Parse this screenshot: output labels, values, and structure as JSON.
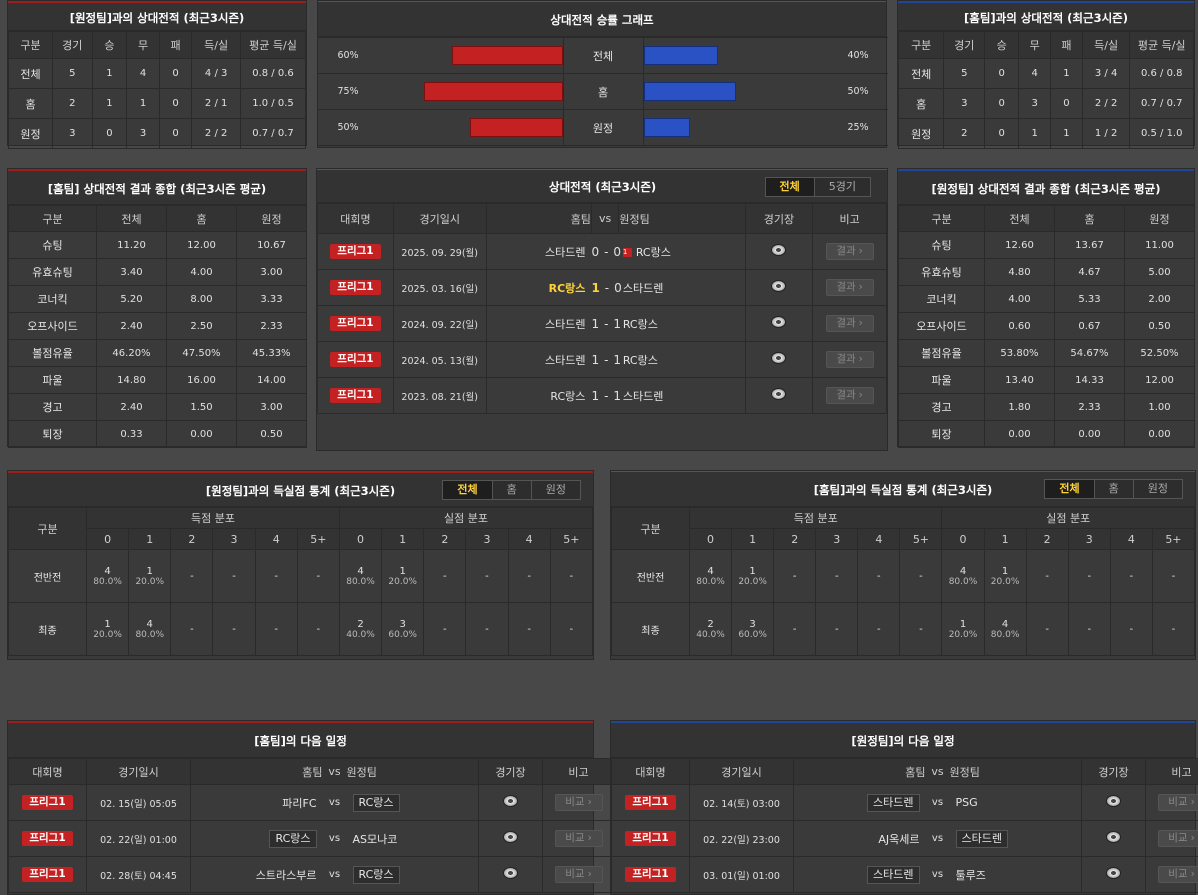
{
  "h2h_left": {
    "title": "[원정팀]과의 상대전적 (최근3시즌)",
    "headers": [
      "구분",
      "경기",
      "승",
      "무",
      "패",
      "득/실",
      "평균 득/실"
    ],
    "rows": [
      [
        "전체",
        "5",
        "1",
        "4",
        "0",
        "4 / 3",
        "0.8 / 0.6"
      ],
      [
        "홈",
        "2",
        "1",
        "1",
        "0",
        "2 / 1",
        "1.0 / 0.5"
      ],
      [
        "원정",
        "3",
        "0",
        "3",
        "0",
        "2 / 2",
        "0.7 / 0.7"
      ]
    ]
  },
  "h2h_right": {
    "title": "[홈팀]과의 상대전적 (최근3시즌)",
    "headers": [
      "구분",
      "경기",
      "승",
      "무",
      "패",
      "득/실",
      "평균 득/실"
    ],
    "rows": [
      [
        "전체",
        "5",
        "0",
        "4",
        "1",
        "3 / 4",
        "0.6 / 0.8"
      ],
      [
        "홈",
        "3",
        "0",
        "3",
        "0",
        "2 / 2",
        "0.7 / 0.7"
      ],
      [
        "원정",
        "2",
        "0",
        "1",
        "1",
        "1 / 2",
        "0.5 / 1.0"
      ]
    ]
  },
  "winrate": {
    "title": "상대전적 승률 그래프",
    "rows": [
      {
        "label": "전체",
        "home_pct": "60%",
        "home_val": 60,
        "away_pct": "40%",
        "away_val": 40
      },
      {
        "label": "홈",
        "home_pct": "75%",
        "home_val": 75,
        "away_pct": "50%",
        "away_val": 50
      },
      {
        "label": "원정",
        "home_pct": "50%",
        "home_val": 50,
        "away_pct": "25%",
        "away_val": 25
      }
    ],
    "colors": {
      "home": "#c42222",
      "away": "#2a52c4"
    }
  },
  "summary_home": {
    "title": "[홈팀] 상대전적 결과 종합 (최근3시즌 평균)",
    "headers": [
      "구분",
      "전체",
      "홈",
      "원정"
    ],
    "rows": [
      [
        "슈팅",
        "11.20",
        "12.00",
        "10.67"
      ],
      [
        "유효슈팅",
        "3.40",
        "4.00",
        "3.00"
      ],
      [
        "코너킥",
        "5.20",
        "8.00",
        "3.33"
      ],
      [
        "오프사이드",
        "2.40",
        "2.50",
        "2.33"
      ],
      [
        "볼점유율",
        "46.20%",
        "47.50%",
        "45.33%"
      ],
      [
        "파울",
        "14.80",
        "16.00",
        "14.00"
      ],
      [
        "경고",
        "2.40",
        "1.50",
        "3.00"
      ],
      [
        "퇴장",
        "0.33",
        "0.00",
        "0.50"
      ]
    ]
  },
  "summary_away": {
    "title": "[원정팀] 상대전적 결과 종합 (최근3시즌 평균)",
    "headers": [
      "구분",
      "전체",
      "홈",
      "원정"
    ],
    "rows": [
      [
        "슈팅",
        "12.60",
        "13.67",
        "11.00"
      ],
      [
        "유효슈팅",
        "4.80",
        "4.67",
        "5.00"
      ],
      [
        "코너킥",
        "4.00",
        "5.33",
        "2.00"
      ],
      [
        "오프사이드",
        "0.60",
        "0.67",
        "0.50"
      ],
      [
        "볼점유율",
        "53.80%",
        "54.67%",
        "52.50%"
      ],
      [
        "파울",
        "13.40",
        "14.33",
        "12.00"
      ],
      [
        "경고",
        "1.80",
        "2.33",
        "1.00"
      ],
      [
        "퇴장",
        "0.00",
        "0.00",
        "0.00"
      ]
    ]
  },
  "matches": {
    "title": "상대전적 (최근3시즌)",
    "tabs": [
      "전체",
      "5경기"
    ],
    "headers": [
      "대회명",
      "경기일시",
      "홈팀",
      "vs",
      "원정팀",
      "경기장",
      "비고"
    ],
    "rows": [
      {
        "league": "프리그1",
        "date": "2025. 09. 29(월)",
        "home": "스타드렌",
        "hs": "0",
        "sep": "-",
        "as": "0",
        "away": "RC랑스",
        "badge": "1",
        "btn": "결과",
        "hl": ""
      },
      {
        "league": "프리그1",
        "date": "2025. 03. 16(일)",
        "home": "RC랑스",
        "hs": "1",
        "sep": "-",
        "as": "0",
        "away": "스타드렌",
        "badge": "",
        "btn": "결과",
        "hl": "home"
      },
      {
        "league": "프리그1",
        "date": "2024. 09. 22(일)",
        "home": "스타드렌",
        "hs": "1",
        "sep": "-",
        "as": "1",
        "away": "RC랑스",
        "badge": "",
        "btn": "결과",
        "hl": ""
      },
      {
        "league": "프리그1",
        "date": "2024. 05. 13(월)",
        "home": "스타드렌",
        "hs": "1",
        "sep": "-",
        "as": "1",
        "away": "RC랑스",
        "badge": "",
        "btn": "결과",
        "hl": ""
      },
      {
        "league": "프리그1",
        "date": "2023. 08. 21(월)",
        "home": "RC랑스",
        "hs": "1",
        "sep": "-",
        "as": "1",
        "away": "스타드렌",
        "badge": "",
        "btn": "결과",
        "hl": ""
      }
    ]
  },
  "goals_left": {
    "title": "[원정팀]과의 득실점 통계 (최근3시즌)",
    "tabs": [
      "전체",
      "홈",
      "원정"
    ],
    "gubun": "구분",
    "scored": "득점 분포",
    "conceded": "실점 분포",
    "cols": [
      "0",
      "1",
      "2",
      "3",
      "4",
      "5+"
    ],
    "rows": [
      {
        "label": "전반전",
        "s": [
          [
            "4",
            "80.0%"
          ],
          [
            "1",
            "20.0%"
          ],
          [
            "-",
            ""
          ],
          [
            "-",
            ""
          ],
          [
            "-",
            ""
          ],
          [
            "-",
            ""
          ]
        ],
        "c": [
          [
            "4",
            "80.0%"
          ],
          [
            "1",
            "20.0%"
          ],
          [
            "-",
            ""
          ],
          [
            "-",
            ""
          ],
          [
            "-",
            ""
          ],
          [
            "-",
            ""
          ]
        ]
      },
      {
        "label": "최종",
        "s": [
          [
            "1",
            "20.0%"
          ],
          [
            "4",
            "80.0%"
          ],
          [
            "-",
            ""
          ],
          [
            "-",
            ""
          ],
          [
            "-",
            ""
          ],
          [
            "-",
            ""
          ]
        ],
        "c": [
          [
            "2",
            "40.0%"
          ],
          [
            "3",
            "60.0%"
          ],
          [
            "-",
            ""
          ],
          [
            "-",
            ""
          ],
          [
            "-",
            ""
          ],
          [
            "-",
            ""
          ]
        ]
      }
    ]
  },
  "goals_right": {
    "title": "[홈팀]과의 득실점 통계 (최근3시즌)",
    "tabs": [
      "전체",
      "홈",
      "원정"
    ],
    "gubun": "구분",
    "scored": "득점 분포",
    "conceded": "실점 분포",
    "cols": [
      "0",
      "1",
      "2",
      "3",
      "4",
      "5+"
    ],
    "rows": [
      {
        "label": "전반전",
        "s": [
          [
            "4",
            "80.0%"
          ],
          [
            "1",
            "20.0%"
          ],
          [
            "-",
            ""
          ],
          [
            "-",
            ""
          ],
          [
            "-",
            ""
          ],
          [
            "-",
            ""
          ]
        ],
        "c": [
          [
            "4",
            "80.0%"
          ],
          [
            "1",
            "20.0%"
          ],
          [
            "-",
            ""
          ],
          [
            "-",
            ""
          ],
          [
            "-",
            ""
          ],
          [
            "-",
            ""
          ]
        ]
      },
      {
        "label": "최종",
        "s": [
          [
            "2",
            "40.0%"
          ],
          [
            "3",
            "60.0%"
          ],
          [
            "-",
            ""
          ],
          [
            "-",
            ""
          ],
          [
            "-",
            ""
          ],
          [
            "-",
            ""
          ]
        ],
        "c": [
          [
            "1",
            "20.0%"
          ],
          [
            "4",
            "80.0%"
          ],
          [
            "-",
            ""
          ],
          [
            "-",
            ""
          ],
          [
            "-",
            ""
          ],
          [
            "-",
            ""
          ]
        ]
      }
    ]
  },
  "next_home": {
    "title": "[홈팀]의 다음 일정",
    "headers": [
      "대회명",
      "경기일시",
      "홈팀",
      "vs",
      "원정팀",
      "경기장",
      "비고"
    ],
    "rows": [
      {
        "league": "프리그1",
        "date": "02. 15(일) 05:05",
        "home": "파리FC",
        "vs": "vs",
        "away": "RC랑스",
        "box": "away",
        "btn": "비교"
      },
      {
        "league": "프리그1",
        "date": "02. 22(일) 01:00",
        "home": "RC랑스",
        "vs": "vs",
        "away": "AS모나코",
        "box": "home",
        "btn": "비교"
      },
      {
        "league": "프리그1",
        "date": "02. 28(토) 04:45",
        "home": "스트라스부르",
        "vs": "vs",
        "away": "RC랑스",
        "box": "away",
        "btn": "비교"
      }
    ]
  },
  "next_away": {
    "title": "[원정팀]의 다음 일정",
    "headers": [
      "대회명",
      "경기일시",
      "홈팀",
      "vs",
      "원정팀",
      "경기장",
      "비고"
    ],
    "rows": [
      {
        "league": "프리그1",
        "date": "02. 14(토) 03:00",
        "home": "스타드렌",
        "vs": "vs",
        "away": "PSG",
        "box": "home",
        "btn": "비교"
      },
      {
        "league": "프리그1",
        "date": "02. 22(일) 23:00",
        "home": "AJ옥세르",
        "vs": "vs",
        "away": "스타드렌",
        "box": "away",
        "btn": "비교"
      },
      {
        "league": "프리그1",
        "date": "03. 01(일) 01:00",
        "home": "스타드렌",
        "vs": "vs",
        "away": "툴루즈",
        "box": "home",
        "btn": "비교"
      }
    ]
  }
}
